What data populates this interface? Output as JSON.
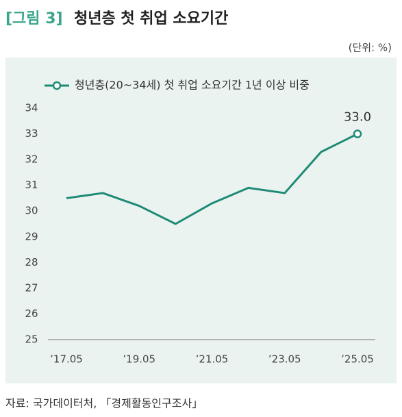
{
  "chart_data": {
    "type": "line",
    "figure_label": "[그림 3]",
    "title": "청년층 첫 취업 소요기간",
    "unit": "(단위: %)",
    "source": "자료: 국가데이터처, 「경제활동인구조사」",
    "categories": [
      "’17.05",
      null,
      "’19.05",
      null,
      "’21.05",
      null,
      "’23.05",
      null,
      "’25.05"
    ],
    "series": [
      {
        "name": "청년층(20~34세) 첫 취업 소요기간 1년 이상 비중",
        "color": "#1f8a76",
        "values": [
          30.5,
          30.7,
          30.2,
          29.5,
          30.3,
          30.9,
          30.7,
          32.3,
          33.0
        ],
        "value_labels": [
          null,
          null,
          null,
          null,
          null,
          null,
          null,
          null,
          "33.0"
        ]
      }
    ],
    "ylim": [
      25,
      34
    ],
    "yticks": [
      25,
      26,
      27,
      28,
      29,
      30,
      31,
      32,
      33,
      34
    ],
    "grid": false,
    "background": "#eaf3ef",
    "title_label_color": "#3aa58c"
  }
}
